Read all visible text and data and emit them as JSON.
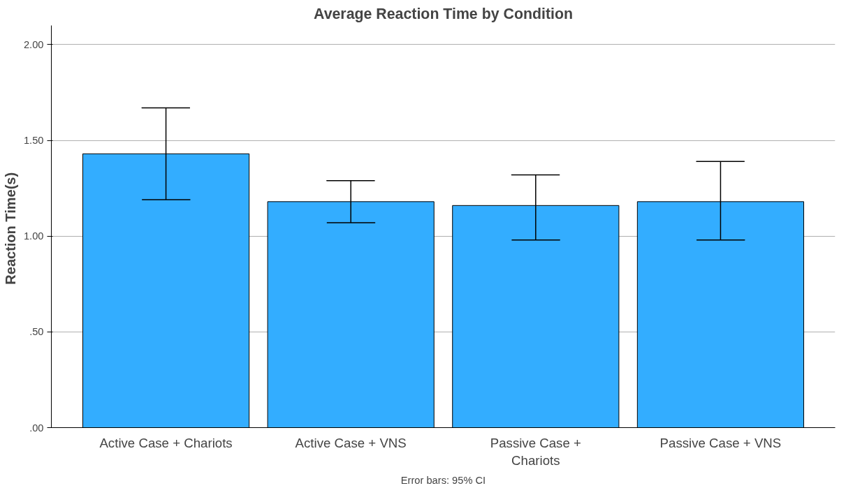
{
  "chart_data": {
    "type": "bar",
    "title": "Average Reaction Time by Condition",
    "ylabel": "Reaction  Time(s)",
    "categories": [
      "Active Case + Chariots",
      "Active Case + VNS",
      "Passive Case + Chariots",
      "Passive Case + VNS"
    ],
    "values": [
      1.43,
      1.18,
      1.16,
      1.18
    ],
    "errors": [
      [
        1.19,
        1.67
      ],
      [
        1.07,
        1.29
      ],
      [
        0.98,
        1.32
      ],
      [
        0.98,
        1.39
      ]
    ],
    "color": "#33adff",
    "ylim": [
      0,
      2.1
    ],
    "yticks": [
      {
        "value": 0,
        "label": ".00"
      },
      {
        "value": 0.5,
        "label": ".50"
      },
      {
        "value": 1,
        "label": "1.00"
      },
      {
        "value": 1.5,
        "label": "1.50"
      },
      {
        "value": 2,
        "label": "2.00"
      }
    ],
    "grid": "y",
    "annotations": [
      "Error bars: 95% CI"
    ]
  }
}
